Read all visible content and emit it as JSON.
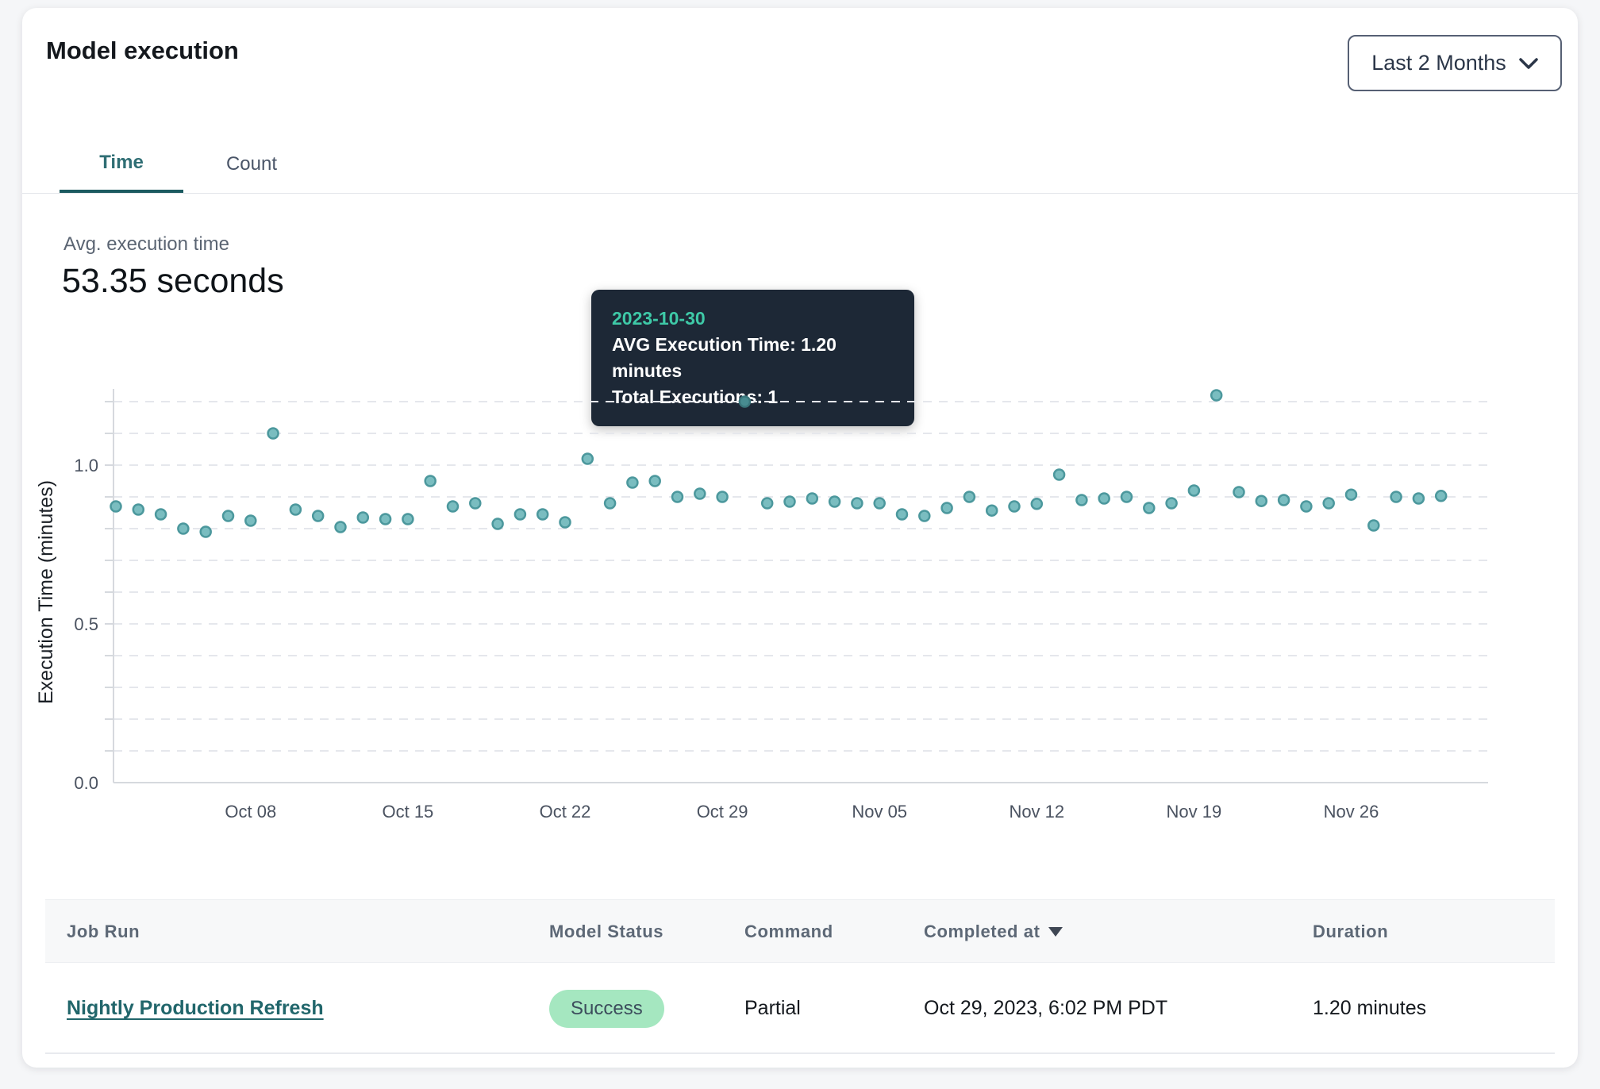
{
  "header": {
    "title": "Model execution",
    "range_selector": {
      "value": "Last 2 Months",
      "icon": "chevron-down"
    }
  },
  "tabs": [
    {
      "label": "Time",
      "active": true
    },
    {
      "label": "Count",
      "active": false
    }
  ],
  "summary": {
    "label": "Avg. execution time",
    "value": "53.35 seconds"
  },
  "tooltip": {
    "date": "2023-10-30",
    "avg_line": "AVG Execution Time: 1.20 minutes",
    "total_line": "Total Executions: 1"
  },
  "chart_data": {
    "type": "scatter",
    "title": "",
    "xlabel": "",
    "ylabel": "Execution Time (minutes)",
    "ylim": [
      0,
      1.25
    ],
    "grid": "dashed horizontal every 0.1",
    "yticks": [
      {
        "v": 0.0,
        "label": "0.0"
      },
      {
        "v": 0.5,
        "label": "0.5"
      },
      {
        "v": 1.0,
        "label": "1.0"
      }
    ],
    "x_ticks": [
      {
        "i": 6,
        "label": "Oct 08"
      },
      {
        "i": 13,
        "label": "Oct 15"
      },
      {
        "i": 20,
        "label": "Oct 22"
      },
      {
        "i": 27,
        "label": "Oct 29"
      },
      {
        "i": 34,
        "label": "Nov 05"
      },
      {
        "i": 41,
        "label": "Nov 12"
      },
      {
        "i": 48,
        "label": "Nov 19"
      },
      {
        "i": 55,
        "label": "Nov 26"
      }
    ],
    "highlight_date": "2023-10-30",
    "colors": {
      "dot_fill": "#7abdc0",
      "dot_stroke": "#4c989d",
      "highlight_fill": "#488c91",
      "highlight_stroke": "#3a767c",
      "grid": "#e5e7ec",
      "axis": "#d6d9de",
      "tick_label": "#4a5260",
      "ylabel_color": "#1b2026"
    },
    "points": [
      {
        "date": "2023-10-02",
        "value": 0.87
      },
      {
        "date": "2023-10-03",
        "value": 0.86
      },
      {
        "date": "2023-10-04",
        "value": 0.845
      },
      {
        "date": "2023-10-05",
        "value": 0.8
      },
      {
        "date": "2023-10-06",
        "value": 0.79
      },
      {
        "date": "2023-10-07",
        "value": 0.84
      },
      {
        "date": "2023-10-08",
        "value": 0.825
      },
      {
        "date": "2023-10-09",
        "value": 1.1
      },
      {
        "date": "2023-10-10",
        "value": 0.86
      },
      {
        "date": "2023-10-11",
        "value": 0.84
      },
      {
        "date": "2023-10-12",
        "value": 0.805
      },
      {
        "date": "2023-10-13",
        "value": 0.835
      },
      {
        "date": "2023-10-14",
        "value": 0.83
      },
      {
        "date": "2023-10-15",
        "value": 0.83
      },
      {
        "date": "2023-10-16",
        "value": 0.95
      },
      {
        "date": "2023-10-17",
        "value": 0.87
      },
      {
        "date": "2023-10-18",
        "value": 0.88
      },
      {
        "date": "2023-10-19",
        "value": 0.815
      },
      {
        "date": "2023-10-20",
        "value": 0.845
      },
      {
        "date": "2023-10-21",
        "value": 0.845
      },
      {
        "date": "2023-10-22",
        "value": 0.82
      },
      {
        "date": "2023-10-23",
        "value": 1.02
      },
      {
        "date": "2023-10-24",
        "value": 0.88
      },
      {
        "date": "2023-10-25",
        "value": 0.945
      },
      {
        "date": "2023-10-26",
        "value": 0.95
      },
      {
        "date": "2023-10-27",
        "value": 0.9
      },
      {
        "date": "2023-10-28",
        "value": 0.91
      },
      {
        "date": "2023-10-29",
        "value": 0.9
      },
      {
        "date": "2023-10-30",
        "value": 1.2
      },
      {
        "date": "2023-10-31",
        "value": 0.88
      },
      {
        "date": "2023-11-01",
        "value": 0.885
      },
      {
        "date": "2023-11-02",
        "value": 0.895
      },
      {
        "date": "2023-11-03",
        "value": 0.885
      },
      {
        "date": "2023-11-04",
        "value": 0.88
      },
      {
        "date": "2023-11-05",
        "value": 0.88
      },
      {
        "date": "2023-11-06",
        "value": 0.845
      },
      {
        "date": "2023-11-07",
        "value": 0.84
      },
      {
        "date": "2023-11-08",
        "value": 0.865
      },
      {
        "date": "2023-11-09",
        "value": 0.9
      },
      {
        "date": "2023-11-10",
        "value": 0.857
      },
      {
        "date": "2023-11-11",
        "value": 0.87
      },
      {
        "date": "2023-11-12",
        "value": 0.878
      },
      {
        "date": "2023-11-13",
        "value": 0.97
      },
      {
        "date": "2023-11-14",
        "value": 0.89
      },
      {
        "date": "2023-11-15",
        "value": 0.895
      },
      {
        "date": "2023-11-16",
        "value": 0.9
      },
      {
        "date": "2023-11-17",
        "value": 0.865
      },
      {
        "date": "2023-11-18",
        "value": 0.88
      },
      {
        "date": "2023-11-19",
        "value": 0.92
      },
      {
        "date": "2023-11-20",
        "value": 1.22
      },
      {
        "date": "2023-11-21",
        "value": 0.915
      },
      {
        "date": "2023-11-22",
        "value": 0.887
      },
      {
        "date": "2023-11-23",
        "value": 0.89
      },
      {
        "date": "2023-11-24",
        "value": 0.87
      },
      {
        "date": "2023-11-25",
        "value": 0.88
      },
      {
        "date": "2023-11-26",
        "value": 0.907
      },
      {
        "date": "2023-11-27",
        "value": 0.81
      },
      {
        "date": "2023-11-28",
        "value": 0.9
      },
      {
        "date": "2023-11-29",
        "value": 0.895
      },
      {
        "date": "2023-11-30",
        "value": 0.903
      }
    ]
  },
  "table": {
    "columns": [
      {
        "label": "Job Run"
      },
      {
        "label": "Model Status"
      },
      {
        "label": "Command"
      },
      {
        "label": "Completed at",
        "sorted": "desc"
      },
      {
        "label": "Duration"
      }
    ],
    "row": {
      "job_run": "Nightly Production Refresh",
      "model_status": "Success",
      "command": "Partial",
      "completed_at": "Oct 29, 2023, 6:02 PM PDT",
      "duration": "1.20 minutes"
    }
  }
}
